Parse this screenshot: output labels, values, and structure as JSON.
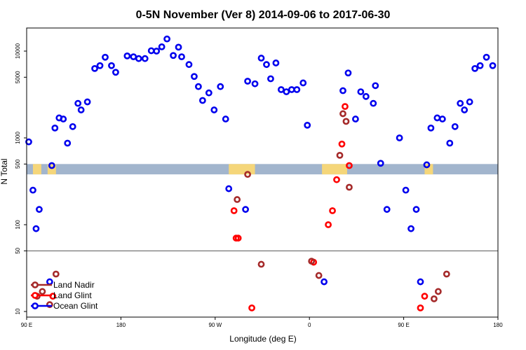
{
  "chart_data": {
    "type": "scatter",
    "title": "0-5N November (Ver 8)   2014-09-06 to 2017-06-30",
    "xlabel": "Longitude (deg E)",
    "ylabel": "N Total",
    "y_scale": "log",
    "x_axis": {
      "ticks": [
        90,
        180,
        270,
        360,
        450,
        540
      ],
      "tick_labels": [
        "90 E",
        "180",
        "90 W",
        "0",
        "90 E",
        "180"
      ],
      "range": [
        90,
        540
      ]
    },
    "y_axis": {
      "ticks": [
        10,
        50,
        100,
        500,
        1000,
        5000,
        10000
      ],
      "tick_labels": [
        "10",
        "50",
        "100",
        "500",
        "1000",
        "5000",
        "10000"
      ]
    },
    "reference_line_y": 50,
    "legend": {
      "position": "bottom-left",
      "entries": [
        {
          "label": "Land Nadir",
          "color": "#a52a2a"
        },
        {
          "label": "Land Glint",
          "color": "#ff0000"
        },
        {
          "label": "Ocean Glint",
          "color": "#0000ee"
        }
      ]
    },
    "map_strip": {
      "ocean_color": "#a2b5cd",
      "land_color": "#f5d67a"
    },
    "series": [
      {
        "name": "Ocean Glint",
        "color": "#0000ee",
        "points": [
          [
            92,
            900
          ],
          [
            96,
            250
          ],
          [
            99,
            90
          ],
          [
            102,
            150
          ],
          [
            114,
            480
          ],
          [
            117,
            1300
          ],
          [
            121,
            1700
          ],
          [
            125,
            1650
          ],
          [
            129,
            870
          ],
          [
            134,
            1350
          ],
          [
            139,
            2500
          ],
          [
            142,
            2100
          ],
          [
            148,
            2600
          ],
          [
            155,
            6300
          ],
          [
            160,
            6800
          ],
          [
            165,
            8500
          ],
          [
            171,
            6800
          ],
          [
            175,
            5700
          ],
          [
            186,
            8800
          ],
          [
            192,
            8600
          ],
          [
            197,
            8200
          ],
          [
            203,
            8200
          ],
          [
            209,
            10100
          ],
          [
            214,
            10000
          ],
          [
            219,
            11200
          ],
          [
            224,
            13800
          ],
          [
            230,
            8900
          ],
          [
            235,
            11100
          ],
          [
            238,
            8600
          ],
          [
            245,
            7000
          ],
          [
            250,
            5100
          ],
          [
            254,
            3900
          ],
          [
            258,
            2700
          ],
          [
            264,
            3300
          ],
          [
            269,
            2100
          ],
          [
            275,
            3900
          ],
          [
            280,
            1650
          ],
          [
            283,
            260
          ],
          [
            299,
            150
          ],
          [
            301,
            4500
          ],
          [
            308,
            4200
          ],
          [
            314,
            8300
          ],
          [
            319,
            7000
          ],
          [
            323,
            4800
          ],
          [
            328,
            7300
          ],
          [
            333,
            3600
          ],
          [
            338,
            3400
          ],
          [
            343,
            3600
          ],
          [
            348,
            3600
          ],
          [
            354,
            4300
          ],
          [
            358,
            1400
          ],
          [
            392,
            3500
          ],
          [
            397,
            5600
          ],
          [
            404,
            1650
          ],
          [
            409,
            3400
          ],
          [
            414,
            3000
          ],
          [
            421,
            2500
          ],
          [
            423,
            4000
          ],
          [
            428,
            510
          ],
          [
            434,
            150
          ],
          [
            446,
            1000
          ],
          [
            452,
            250
          ],
          [
            457,
            90
          ],
          [
            462,
            150
          ],
          [
            472,
            490
          ],
          [
            476,
            1300
          ],
          [
            482,
            1700
          ],
          [
            487,
            1650
          ],
          [
            494,
            870
          ],
          [
            499,
            1350
          ],
          [
            504,
            2500
          ],
          [
            508,
            2100
          ],
          [
            513,
            2600
          ],
          [
            518,
            6300
          ],
          [
            523,
            6800
          ],
          [
            529,
            8500
          ],
          [
            535,
            6800
          ],
          [
            374,
            22
          ],
          [
            466,
            22
          ],
          [
            112,
            22
          ]
        ]
      },
      {
        "name": "Land Glint",
        "color": "#ff0000",
        "points": [
          [
            288,
            145
          ],
          [
            290,
            70
          ],
          [
            292,
            70
          ],
          [
            305,
            11
          ],
          [
            364,
            37
          ],
          [
            378,
            100
          ],
          [
            382,
            145
          ],
          [
            386,
            330
          ],
          [
            391,
            850
          ],
          [
            394,
            2300
          ],
          [
            398,
            480
          ],
          [
            115,
            15
          ],
          [
            466,
            11
          ],
          [
            470,
            15
          ]
        ]
      },
      {
        "name": "Land Nadir",
        "color": "#a52a2a",
        "points": [
          [
            301,
            380
          ],
          [
            291,
            195
          ],
          [
            314,
            35
          ],
          [
            362,
            38
          ],
          [
            369,
            26
          ],
          [
            389,
            630
          ],
          [
            392,
            1900
          ],
          [
            395,
            1550
          ],
          [
            398,
            270
          ],
          [
            118,
            27
          ],
          [
            105,
            17
          ],
          [
            100,
            15
          ],
          [
            112,
            12
          ],
          [
            479,
            14
          ],
          [
            483,
            17
          ],
          [
            491,
            27
          ]
        ]
      }
    ]
  }
}
